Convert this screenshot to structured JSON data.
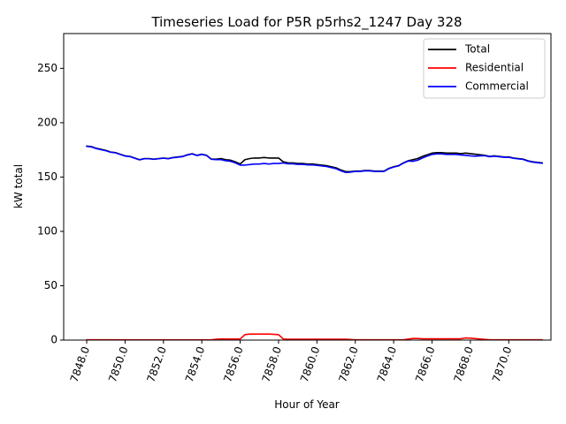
{
  "chart_data": {
    "type": "line",
    "title": "Timeseries Load for P5R p5rhs2_1247  Day 328",
    "xlabel": "Hour of Year",
    "ylabel": "kW total",
    "xlim": [
      7846.8,
      7872.2
    ],
    "ylim": [
      0,
      282
    ],
    "xticks": [
      7848,
      7850,
      7852,
      7854,
      7856,
      7858,
      7860,
      7862,
      7864,
      7866,
      7868,
      7870
    ],
    "xtick_labels": [
      "7848.0",
      "7850.0",
      "7852.0",
      "7854.0",
      "7856.0",
      "7858.0",
      "7860.0",
      "7862.0",
      "7864.0",
      "7866.0",
      "7868.0",
      "7870.0"
    ],
    "yticks": [
      0,
      50,
      100,
      150,
      200,
      250
    ],
    "ytick_labels": [
      "0",
      "50",
      "100",
      "150",
      "200",
      "250"
    ],
    "legend_position": "top-right",
    "series": [
      {
        "name": "Total",
        "color": "#000000",
        "x": [
          7848.0,
          7848.25,
          7848.5,
          7848.75,
          7849.0,
          7849.25,
          7849.5,
          7849.75,
          7850.0,
          7850.25,
          7850.5,
          7850.75,
          7851.0,
          7851.25,
          7851.5,
          7851.75,
          7852.0,
          7852.25,
          7852.5,
          7852.75,
          7853.0,
          7853.25,
          7853.5,
          7853.75,
          7854.0,
          7854.25,
          7854.5,
          7854.75,
          7855.0,
          7855.25,
          7855.5,
          7855.75,
          7856.0,
          7856.25,
          7856.5,
          7856.75,
          7857.0,
          7857.25,
          7857.5,
          7857.75,
          7858.0,
          7858.25,
          7858.5,
          7858.75,
          7859.0,
          7859.25,
          7859.5,
          7859.75,
          7860.0,
          7860.25,
          7860.5,
          7860.75,
          7861.0,
          7861.25,
          7861.5,
          7861.75,
          7862.0,
          7862.25,
          7862.5,
          7862.75,
          7863.0,
          7863.25,
          7863.5,
          7863.75,
          7864.0,
          7864.25,
          7864.5,
          7864.75,
          7865.0,
          7865.25,
          7865.5,
          7865.75,
          7866.0,
          7866.25,
          7866.5,
          7866.75,
          7867.0,
          7867.25,
          7867.5,
          7867.75,
          7868.0,
          7868.25,
          7868.5,
          7868.75,
          7869.0,
          7869.25,
          7869.5,
          7869.75,
          7870.0,
          7870.25,
          7870.5,
          7870.75,
          7871.0,
          7871.25,
          7871.5,
          7871.75
        ],
        "values": [
          178.5,
          178.0,
          176.5,
          175.5,
          174.5,
          173.0,
          172.5,
          171.0,
          169.5,
          169.0,
          167.5,
          166.0,
          167.0,
          167.0,
          166.5,
          167.0,
          167.5,
          167.0,
          168.0,
          168.5,
          169.0,
          170.5,
          171.5,
          170.0,
          171.0,
          170.0,
          166.5,
          166.5,
          167.0,
          166.0,
          165.5,
          164.0,
          162.0,
          166.0,
          167.0,
          167.5,
          167.5,
          168.0,
          167.5,
          167.5,
          167.5,
          164.0,
          163.0,
          163.0,
          162.5,
          162.5,
          162.0,
          162.0,
          161.5,
          161.0,
          160.5,
          159.5,
          158.5,
          156.5,
          155.0,
          155.0,
          155.5,
          155.5,
          156.0,
          156.0,
          155.5,
          155.5,
          155.5,
          158.0,
          159.5,
          160.5,
          163.0,
          165.0,
          166.0,
          167.0,
          169.0,
          170.5,
          172.0,
          172.5,
          172.5,
          172.0,
          172.0,
          172.0,
          171.5,
          172.0,
          171.5,
          171.0,
          170.5,
          170.0,
          169.0,
          169.5,
          169.0,
          168.5,
          168.5,
          167.5,
          167.0,
          166.5,
          165.0,
          164.0,
          163.5,
          163.0
        ]
      },
      {
        "name": "Residential",
        "color": "#ff0000",
        "x": [
          7848.0,
          7848.5,
          7849.0,
          7849.5,
          7850.0,
          7850.5,
          7851.0,
          7851.5,
          7852.0,
          7852.5,
          7853.0,
          7853.5,
          7854.0,
          7854.5,
          7854.75,
          7855.0,
          7855.5,
          7856.0,
          7856.25,
          7856.5,
          7857.0,
          7857.5,
          7858.0,
          7858.25,
          7858.5,
          7859.0,
          7859.5,
          7860.0,
          7860.5,
          7861.0,
          7861.5,
          7862.0,
          7862.5,
          7863.0,
          7863.5,
          7864.0,
          7864.5,
          7865.0,
          7865.25,
          7865.5,
          7866.0,
          7866.5,
          7867.0,
          7867.5,
          7867.75,
          7868.0,
          7868.5,
          7869.0,
          7869.5,
          7870.0,
          7870.5,
          7871.0,
          7871.5,
          7871.75
        ],
        "values": [
          0.3,
          0.3,
          0.3,
          0.3,
          0.2,
          0.2,
          0.2,
          0.2,
          0.2,
          0.2,
          0.2,
          0.2,
          0.2,
          0.3,
          0.8,
          1.0,
          1.0,
          1.0,
          5.0,
          5.5,
          5.5,
          5.5,
          5.0,
          1.0,
          0.8,
          0.8,
          0.8,
          0.8,
          0.8,
          0.8,
          0.8,
          0.3,
          0.3,
          0.3,
          0.3,
          0.3,
          0.3,
          1.5,
          1.5,
          1.2,
          1.2,
          1.2,
          1.2,
          1.2,
          2.0,
          1.8,
          1.0,
          0.3,
          0.3,
          0.3,
          0.3,
          0.3,
          0.3,
          0.3
        ]
      },
      {
        "name": "Commercial",
        "color": "#0000ff",
        "x": [
          7848.0,
          7848.25,
          7848.5,
          7848.75,
          7849.0,
          7849.25,
          7849.5,
          7849.75,
          7850.0,
          7850.25,
          7850.5,
          7850.75,
          7851.0,
          7851.25,
          7851.5,
          7851.75,
          7852.0,
          7852.25,
          7852.5,
          7852.75,
          7853.0,
          7853.25,
          7853.5,
          7853.75,
          7854.0,
          7854.25,
          7854.5,
          7854.75,
          7855.0,
          7855.25,
          7855.5,
          7855.75,
          7856.0,
          7856.25,
          7856.5,
          7856.75,
          7857.0,
          7857.25,
          7857.5,
          7857.75,
          7858.0,
          7858.25,
          7858.5,
          7858.75,
          7859.0,
          7859.25,
          7859.5,
          7859.75,
          7860.0,
          7860.25,
          7860.5,
          7860.75,
          7861.0,
          7861.25,
          7861.5,
          7861.75,
          7862.0,
          7862.25,
          7862.5,
          7862.75,
          7863.0,
          7863.25,
          7863.5,
          7863.75,
          7864.0,
          7864.25,
          7864.5,
          7864.75,
          7865.0,
          7865.25,
          7865.5,
          7865.75,
          7866.0,
          7866.25,
          7866.5,
          7866.75,
          7867.0,
          7867.25,
          7867.5,
          7867.75,
          7868.0,
          7868.25,
          7868.5,
          7868.75,
          7869.0,
          7869.25,
          7869.5,
          7869.75,
          7870.0,
          7870.25,
          7870.5,
          7870.75,
          7871.0,
          7871.25,
          7871.5,
          7871.75
        ],
        "values": [
          178.2,
          177.7,
          176.2,
          175.2,
          174.2,
          172.8,
          172.3,
          170.8,
          169.3,
          168.8,
          167.3,
          165.8,
          166.8,
          166.8,
          166.3,
          166.8,
          167.3,
          166.8,
          167.8,
          168.3,
          168.8,
          170.3,
          171.3,
          169.8,
          170.8,
          169.8,
          166.3,
          166.0,
          166.0,
          165.0,
          164.5,
          163.0,
          161.0,
          161.0,
          161.5,
          162.0,
          162.0,
          162.5,
          162.0,
          162.5,
          162.5,
          163.0,
          162.2,
          162.2,
          161.7,
          161.7,
          161.2,
          161.2,
          160.7,
          160.2,
          159.7,
          158.7,
          157.7,
          155.7,
          154.2,
          154.5,
          155.2,
          155.2,
          155.7,
          155.7,
          155.2,
          155.2,
          155.2,
          157.7,
          159.2,
          160.2,
          162.7,
          164.7,
          164.5,
          165.5,
          167.5,
          169.3,
          170.8,
          171.3,
          171.3,
          170.8,
          170.8,
          170.8,
          170.3,
          170.0,
          169.5,
          169.2,
          169.5,
          169.7,
          168.7,
          169.2,
          168.7,
          168.2,
          168.2,
          167.2,
          166.7,
          166.2,
          164.7,
          163.7,
          163.2,
          162.7
        ]
      }
    ]
  }
}
